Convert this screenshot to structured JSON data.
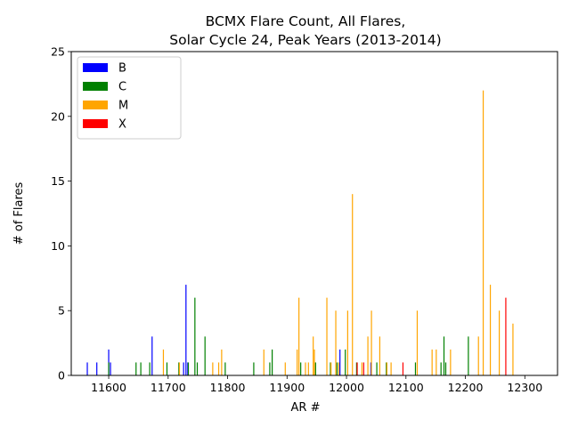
{
  "chart_data": {
    "type": "bar",
    "title": [
      "BCMX Flare Count, All Flares,",
      "Solar Cycle 24, Peak Years (2013-2014)"
    ],
    "xlabel": "AR #",
    "ylabel": "# of Flares",
    "xlim": [
      11537,
      12355
    ],
    "ylim": [
      0,
      25
    ],
    "xticks": [
      11600,
      11700,
      11800,
      11900,
      12000,
      12100,
      12200,
      12300
    ],
    "yticks": [
      0,
      5,
      10,
      15,
      20,
      25
    ],
    "grid": false,
    "legend_position": "top-left",
    "series": [
      {
        "name": "B",
        "color": "#0000ff",
        "points": [
          [
            11564,
            1
          ],
          [
            11580,
            1
          ],
          [
            11600,
            2
          ],
          [
            11603,
            1
          ],
          [
            11673,
            3
          ],
          [
            11726,
            1
          ],
          [
            11730,
            7
          ],
          [
            11733,
            1
          ],
          [
            11989,
            2
          ],
          [
            12041,
            1
          ]
        ]
      },
      {
        "name": "C",
        "color": "#008000",
        "points": [
          [
            11600,
            1
          ],
          [
            11646,
            1
          ],
          [
            11654,
            1
          ],
          [
            11669,
            1
          ],
          [
            11698,
            1
          ],
          [
            11718,
            1
          ],
          [
            11734,
            1
          ],
          [
            11745,
            6
          ],
          [
            11749,
            1
          ],
          [
            11762,
            3
          ],
          [
            11796,
            1
          ],
          [
            11844,
            1
          ],
          [
            11871,
            1
          ],
          [
            11875,
            2
          ],
          [
            11923,
            1
          ],
          [
            11948,
            1
          ],
          [
            11973,
            1
          ],
          [
            11984,
            1
          ],
          [
            11998,
            2
          ],
          [
            12017,
            1
          ],
          [
            12051,
            1
          ],
          [
            12067,
            1
          ],
          [
            12116,
            1
          ],
          [
            12159,
            1
          ],
          [
            12164,
            3
          ],
          [
            12167,
            1
          ],
          [
            12205,
            3
          ]
        ]
      },
      {
        "name": "M",
        "color": "#ffa500",
        "points": [
          [
            11692,
            2
          ],
          [
            11719,
            1
          ],
          [
            11775,
            1
          ],
          [
            11785,
            1
          ],
          [
            11790,
            2
          ],
          [
            11861,
            2
          ],
          [
            11897,
            1
          ],
          [
            11917,
            2
          ],
          [
            11920,
            6
          ],
          [
            11931,
            1
          ],
          [
            11936,
            1
          ],
          [
            11944,
            3
          ],
          [
            11946,
            2
          ],
          [
            11967,
            6
          ],
          [
            11974,
            1
          ],
          [
            11982,
            5
          ],
          [
            11987,
            1
          ],
          [
            12002,
            5
          ],
          [
            12010,
            14
          ],
          [
            12026,
            1
          ],
          [
            12036,
            3
          ],
          [
            12042,
            5
          ],
          [
            12056,
            3
          ],
          [
            12068,
            1
          ],
          [
            12075,
            1
          ],
          [
            12119,
            5
          ],
          [
            12144,
            2
          ],
          [
            12151,
            2
          ],
          [
            12175,
            2
          ],
          [
            12222,
            3
          ],
          [
            12230,
            22
          ],
          [
            12242,
            7
          ],
          [
            12257,
            5
          ],
          [
            12280,
            4
          ]
        ]
      },
      {
        "name": "X",
        "color": "#ff0000",
        "points": [
          [
            12018,
            1
          ],
          [
            12029,
            1
          ],
          [
            12095,
            1
          ],
          [
            12268,
            6
          ]
        ]
      }
    ]
  }
}
